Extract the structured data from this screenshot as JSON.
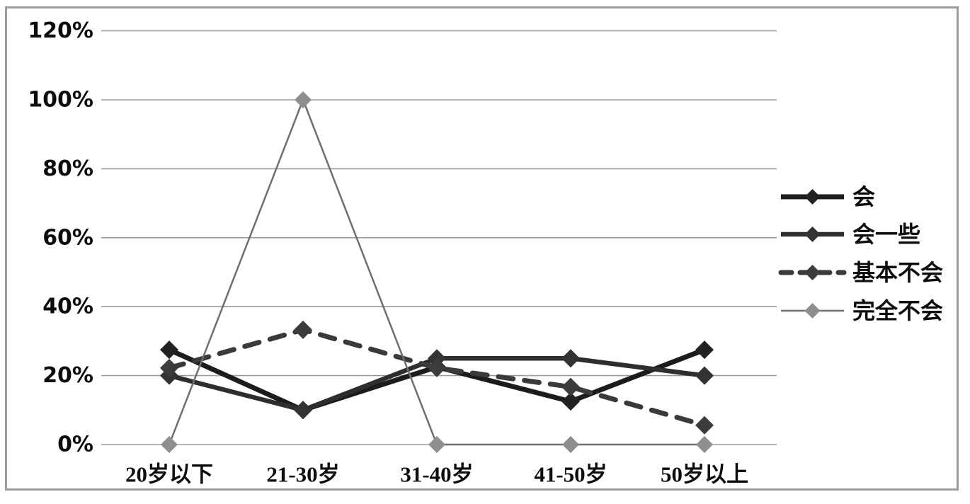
{
  "chart_data": {
    "type": "line",
    "title": "",
    "xlabel": "",
    "ylabel": "",
    "grid": true,
    "legend_position": "right",
    "ylim": [
      0,
      120
    ],
    "y_ticks": [
      "0%",
      "20%",
      "40%",
      "60%",
      "80%",
      "100%",
      "120%"
    ],
    "categories": [
      "20岁以下",
      "21-30岁",
      "31-40岁",
      "41-50岁",
      "50岁以上"
    ],
    "series": [
      {
        "name": "会",
        "values": [
          27.5,
          10,
          22.5,
          12.5,
          27.5
        ],
        "dash": false,
        "color": "#1c1c1c",
        "marker_color": "#222222",
        "marker": "diamond"
      },
      {
        "name": "会一些",
        "values": [
          20,
          10,
          25,
          25,
          20
        ],
        "dash": false,
        "color": "#2e2e2e",
        "marker_color": "#333333",
        "marker": "diamond"
      },
      {
        "name": "基本不会",
        "values": [
          22.2,
          33.3,
          22.2,
          16.7,
          5.6
        ],
        "dash": true,
        "color": "#3a3a3a",
        "marker_color": "#3c3c3c",
        "marker": "diamond"
      },
      {
        "name": "完全不会",
        "values": [
          0,
          100,
          0,
          0,
          0
        ],
        "dash": false,
        "color": "#6f6f6f",
        "marker_color": "#8f8f8f",
        "marker": "diamond"
      }
    ],
    "colors": {
      "gridline": "#9b9b9b",
      "frame_border": "#9c9c9c",
      "background": "#ffffff",
      "tick_text": "#0d0d0d"
    }
  }
}
